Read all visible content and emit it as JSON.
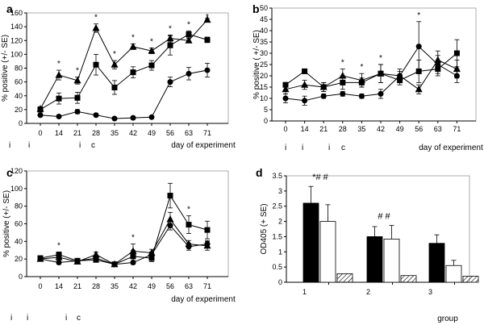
{
  "figure": {
    "description_text": "",
    "colors": {
      "axis": "#000000",
      "frame": "#9a9a9a",
      "black_bar": "#000000",
      "white_bar": "#ffffff"
    }
  },
  "chart_data": [
    {
      "panel": "a",
      "type": "line",
      "title": "",
      "xlabel": "day of experiment",
      "ylabel": "% positive (+/- SE)",
      "x": [
        0,
        14,
        21,
        28,
        35,
        42,
        49,
        56,
        63,
        71
      ],
      "x_ticks": [
        "0",
        "14",
        "21",
        "28",
        "35",
        "42",
        "49",
        "56",
        "63",
        "71"
      ],
      "ylim": [
        0,
        160
      ],
      "y_ticks": [
        "0",
        "20",
        "40",
        "60",
        "80",
        "100",
        "120",
        "140",
        "160"
      ],
      "series": [
        {
          "name": "triangle",
          "marker": "triangle",
          "values": [
            21,
            70,
            62,
            138,
            85,
            111,
            105,
            123,
            120,
            150
          ],
          "errors": [
            3,
            7,
            5,
            6,
            6,
            4,
            4,
            5,
            3,
            2
          ]
        },
        {
          "name": "square",
          "marker": "square",
          "values": [
            20,
            36,
            37,
            85,
            52,
            74,
            84,
            113,
            129,
            121
          ],
          "errors": [
            3,
            8,
            8,
            15,
            10,
            8,
            7,
            14,
            5,
            4
          ]
        },
        {
          "name": "circle",
          "marker": "circle",
          "values": [
            12,
            10,
            17,
            12,
            7,
            8,
            9,
            60,
            72,
            77
          ],
          "errors": [
            2,
            2,
            3,
            2,
            2,
            1,
            1,
            7,
            9,
            10
          ]
        }
      ],
      "stars": [
        "14",
        "21",
        "28",
        "35",
        "42",
        "49",
        "56",
        "63",
        "71"
      ],
      "annotations": [
        "i",
        "i",
        "i",
        "c"
      ]
    },
    {
      "panel": "b",
      "type": "line",
      "title": "",
      "xlabel": "day of experiment",
      "ylabel": "% positive ( +/- SE)",
      "x": [
        0,
        14,
        21,
        28,
        35,
        42,
        49,
        56,
        63,
        71
      ],
      "x_ticks": [
        "0",
        "14",
        "21",
        "28",
        "35",
        "42",
        "49",
        "56",
        "63",
        "71"
      ],
      "ylim": [
        0,
        50
      ],
      "y_ticks": [
        "0",
        "5",
        "10",
        "15",
        "20",
        "25",
        "30",
        "35",
        "40",
        "45",
        "50"
      ],
      "series": [
        {
          "name": "square",
          "marker": "square",
          "values": [
            16,
            22,
            15,
            17,
            17,
            21,
            18,
            22,
            23,
            30
          ],
          "errors": [
            1,
            1,
            2,
            3,
            2,
            4,
            2,
            5,
            3,
            6
          ]
        },
        {
          "name": "triangle",
          "marker": "triangle",
          "values": [
            14,
            16,
            15,
            20,
            18,
            21,
            20,
            14,
            27,
            23
          ],
          "errors": [
            2,
            2,
            2,
            3,
            3,
            4,
            3,
            2,
            4,
            4
          ]
        },
        {
          "name": "circle",
          "marker": "circle",
          "values": [
            10,
            9,
            11,
            12,
            11,
            12,
            20,
            33,
            25,
            20
          ],
          "errors": [
            2,
            2,
            1,
            1,
            1,
            2,
            2,
            11,
            4,
            3
          ]
        }
      ],
      "stars": [
        "28",
        "35",
        "42",
        "56"
      ],
      "annotations": [
        "i",
        "i",
        "i",
        "c"
      ]
    },
    {
      "panel": "c",
      "type": "line",
      "title": "",
      "xlabel": "day of experiment",
      "ylabel": "% positive (+/- SE)",
      "x": [
        0,
        14,
        21,
        28,
        35,
        42,
        49,
        56,
        63,
        71
      ],
      "x_ticks": [
        "0",
        "14",
        "21",
        "28",
        "35",
        "42",
        "49",
        "56",
        "63",
        "71"
      ],
      "ylim": [
        0,
        120
      ],
      "y_ticks": [
        "0",
        "20",
        "40",
        "60",
        "80",
        "100",
        "120"
      ],
      "series": [
        {
          "name": "square",
          "marker": "square",
          "values": [
            21,
            25,
            18,
            19,
            14,
            23,
            21,
            92,
            59,
            53
          ],
          "errors": [
            2,
            3,
            2,
            2,
            2,
            7,
            4,
            14,
            10,
            10
          ]
        },
        {
          "name": "triangle",
          "marker": "triangle",
          "values": [
            20,
            22,
            17,
            25,
            14,
            29,
            27,
            65,
            37,
            35
          ],
          "errors": [
            2,
            2,
            2,
            3,
            2,
            8,
            4,
            8,
            4,
            5
          ]
        },
        {
          "name": "circle",
          "marker": "circle",
          "values": [
            20,
            16,
            18,
            21,
            14,
            16,
            25,
            58,
            34,
            37
          ],
          "errors": [
            2,
            2,
            2,
            2,
            1,
            2,
            3,
            5,
            4,
            4
          ]
        }
      ],
      "stars": [
        "14",
        "42",
        "63"
      ],
      "annotations": [
        "i",
        "i",
        "i",
        "c"
      ]
    },
    {
      "panel": "d",
      "type": "bar",
      "title": "",
      "xlabel": "group",
      "ylabel": "OD405 (+ SE)",
      "categories": [
        "1",
        "2",
        "3"
      ],
      "ylim": [
        0,
        3.5
      ],
      "y_ticks": [
        "0",
        "0.5",
        "1",
        "1.5",
        "2",
        "2.5",
        "3",
        "3.5"
      ],
      "series": [
        {
          "name": "black",
          "fill": "black",
          "values": [
            2.6,
            1.5,
            1.28
          ],
          "errors": [
            0.55,
            0.33,
            0.28
          ]
        },
        {
          "name": "white",
          "fill": "white",
          "values": [
            2.0,
            1.42,
            0.55
          ],
          "errors": [
            0.55,
            0.45,
            0.17
          ]
        },
        {
          "name": "hatched",
          "fill": "hatched",
          "values": [
            0.28,
            0.22,
            0.2
          ],
          "errors": [
            0,
            0,
            0
          ]
        }
      ],
      "group_annotations": [
        "*# #",
        "# #",
        ""
      ]
    }
  ]
}
